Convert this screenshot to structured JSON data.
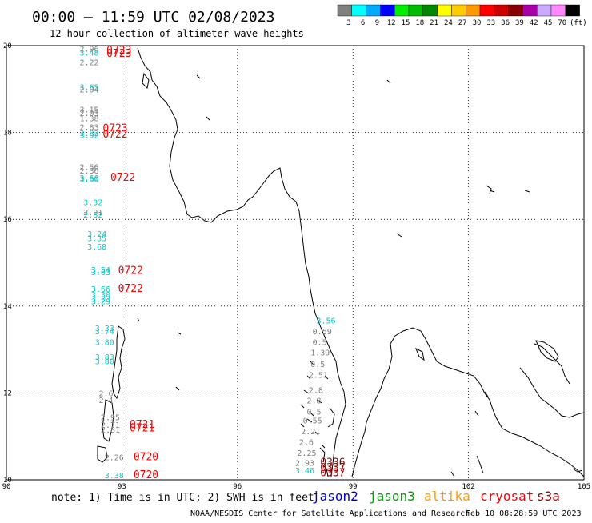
{
  "header": {
    "title": "00:00 – 11:59 UTC 02/08/2023",
    "subtitle": "12 hour collection of altimeter wave heights"
  },
  "legend": {
    "unit": "(ft)",
    "bins": [
      {
        "label": "3",
        "color": "#808080"
      },
      {
        "label": "6",
        "color": "#00ffff"
      },
      {
        "label": "9",
        "color": "#00aaff"
      },
      {
        "label": "12",
        "color": "#0000ff"
      },
      {
        "label": "15",
        "color": "#00ee00"
      },
      {
        "label": "18",
        "color": "#00bb00"
      },
      {
        "label": "21",
        "color": "#008800"
      },
      {
        "label": "24",
        "color": "#ffff00"
      },
      {
        "label": "27",
        "color": "#ffcc00"
      },
      {
        "label": "30",
        "color": "#ff9900"
      },
      {
        "label": "33",
        "color": "#ff0000"
      },
      {
        "label": "36",
        "color": "#cc0000"
      },
      {
        "label": "39",
        "color": "#880000"
      },
      {
        "label": "42",
        "color": "#aa00aa"
      },
      {
        "label": "45",
        "color": "#ccaaff"
      },
      {
        "label": "70",
        "color": "#ff88ff"
      },
      {
        "label": "",
        "color": "#000000"
      }
    ]
  },
  "axes": {
    "lon_labels": [
      "90",
      "93",
      "96",
      "99",
      "102",
      "105"
    ],
    "lat_labels": [
      "20",
      "18",
      "16",
      "14",
      "12",
      "10"
    ]
  },
  "colors": {
    "gray": "#808080",
    "cyan": "#00cccc",
    "red": "#ff0000",
    "darkred": "#990000",
    "coast": "#000000",
    "grid": "#000000"
  },
  "observations": [
    {
      "lon": 91.9,
      "lat": 19.86,
      "text": "2.96",
      "color": "gray"
    },
    {
      "lon": 91.9,
      "lat": 19.77,
      "text": "3.48",
      "color": "cyan"
    },
    {
      "lon": 92.6,
      "lat": 19.82,
      "text": "0723",
      "color": "red"
    },
    {
      "lon": 92.6,
      "lat": 19.74,
      "text": "0723",
      "color": "red"
    },
    {
      "lon": 91.9,
      "lat": 19.55,
      "text": "2.22",
      "color": "gray"
    },
    {
      "lon": 91.9,
      "lat": 18.98,
      "text": "3.65",
      "color": "cyan"
    },
    {
      "lon": 91.9,
      "lat": 18.92,
      "text": "2.04",
      "color": "gray"
    },
    {
      "lon": 91.9,
      "lat": 18.46,
      "text": "3.15",
      "color": "gray"
    },
    {
      "lon": 91.9,
      "lat": 18.38,
      "text": "2.03",
      "color": "gray"
    },
    {
      "lon": 91.9,
      "lat": 18.26,
      "text": "1.38",
      "color": "gray"
    },
    {
      "lon": 91.9,
      "lat": 18.06,
      "text": "2.83",
      "color": "gray"
    },
    {
      "lon": 91.9,
      "lat": 17.92,
      "text": "3.82",
      "color": "cyan"
    },
    {
      "lon": 91.9,
      "lat": 17.87,
      "text": "3.92",
      "color": "cyan"
    },
    {
      "lon": 92.5,
      "lat": 18.02,
      "text": "0723",
      "color": "red"
    },
    {
      "lon": 92.5,
      "lat": 17.88,
      "text": "0722",
      "color": "red"
    },
    {
      "lon": 91.9,
      "lat": 17.14,
      "text": "2.56",
      "color": "gray"
    },
    {
      "lon": 91.9,
      "lat": 17.05,
      "text": "2.36",
      "color": "gray"
    },
    {
      "lon": 91.9,
      "lat": 16.89,
      "text": "3.66",
      "color": "cyan"
    },
    {
      "lon": 91.9,
      "lat": 16.86,
      "text": "3.60",
      "color": "cyan"
    },
    {
      "lon": 92.7,
      "lat": 16.89,
      "text": "0722",
      "color": "red"
    },
    {
      "lon": 92.0,
      "lat": 16.33,
      "text": "3.32",
      "color": "cyan"
    },
    {
      "lon": 92.0,
      "lat": 16.1,
      "text": "2.91",
      "color": "gray"
    },
    {
      "lon": 92.0,
      "lat": 16.04,
      "text": "2.82",
      "color": "cyan"
    },
    {
      "lon": 92.1,
      "lat": 15.6,
      "text": "3.24",
      "color": "cyan"
    },
    {
      "lon": 92.1,
      "lat": 15.5,
      "text": "3.35",
      "color": "cyan"
    },
    {
      "lon": 92.1,
      "lat": 15.3,
      "text": "3.68",
      "color": "cyan"
    },
    {
      "lon": 92.2,
      "lat": 14.77,
      "text": "3.54",
      "color": "cyan"
    },
    {
      "lon": 92.2,
      "lat": 14.71,
      "text": "3.63",
      "color": "cyan"
    },
    {
      "lon": 92.9,
      "lat": 14.74,
      "text": "0722",
      "color": "red"
    },
    {
      "lon": 92.2,
      "lat": 14.33,
      "text": "3.66",
      "color": "cyan"
    },
    {
      "lon": 92.2,
      "lat": 14.2,
      "text": "3.30",
      "color": "cyan"
    },
    {
      "lon": 92.2,
      "lat": 14.1,
      "text": "3.33",
      "color": "cyan"
    },
    {
      "lon": 92.2,
      "lat": 14.04,
      "text": "3.29",
      "color": "cyan"
    },
    {
      "lon": 92.9,
      "lat": 14.33,
      "text": "0722",
      "color": "red"
    },
    {
      "lon": 92.3,
      "lat": 13.43,
      "text": "3.33",
      "color": "cyan"
    },
    {
      "lon": 92.3,
      "lat": 13.35,
      "text": "3.74",
      "color": "cyan"
    },
    {
      "lon": 92.3,
      "lat": 13.1,
      "text": "3.80",
      "color": "cyan"
    },
    {
      "lon": 92.3,
      "lat": 12.76,
      "text": "3.83",
      "color": "cyan"
    },
    {
      "lon": 92.3,
      "lat": 12.66,
      "text": "3.80",
      "color": "cyan"
    },
    {
      "lon": 92.4,
      "lat": 11.92,
      "text": "2.6",
      "color": "gray"
    },
    {
      "lon": 92.4,
      "lat": 11.77,
      "text": "2.4",
      "color": "gray"
    },
    {
      "lon": 92.45,
      "lat": 11.37,
      "text": "2.95",
      "color": "gray"
    },
    {
      "lon": 92.45,
      "lat": 11.2,
      "text": "2.71",
      "color": "gray"
    },
    {
      "lon": 92.45,
      "lat": 11.09,
      "text": "2.81",
      "color": "gray"
    },
    {
      "lon": 93.2,
      "lat": 11.2,
      "text": "0721",
      "color": "red"
    },
    {
      "lon": 93.2,
      "lat": 11.11,
      "text": "0721",
      "color": "red"
    },
    {
      "lon": 92.55,
      "lat": 10.45,
      "text": "2.26",
      "color": "gray"
    },
    {
      "lon": 93.3,
      "lat": 10.45,
      "text": "0720",
      "color": "red"
    },
    {
      "lon": 92.55,
      "lat": 10.04,
      "text": "3.38",
      "color": "cyan"
    },
    {
      "lon": 93.3,
      "lat": 10.04,
      "text": "0720",
      "color": "red"
    },
    {
      "lon": 98.05,
      "lat": 13.6,
      "text": "3.56",
      "color": "cyan"
    },
    {
      "lon": 97.95,
      "lat": 13.35,
      "text": "0.59",
      "color": "gray"
    },
    {
      "lon": 97.95,
      "lat": 13.1,
      "text": "0.5",
      "color": "gray"
    },
    {
      "lon": 97.9,
      "lat": 12.86,
      "text": "1.39",
      "color": "gray"
    },
    {
      "lon": 97.9,
      "lat": 12.6,
      "text": "0.5",
      "color": "gray"
    },
    {
      "lon": 97.85,
      "lat": 12.35,
      "text": "2.51",
      "color": "gray"
    },
    {
      "lon": 97.85,
      "lat": 12.0,
      "text": "2.8",
      "color": "gray"
    },
    {
      "lon": 97.8,
      "lat": 11.76,
      "text": "2.8",
      "color": "gray"
    },
    {
      "lon": 97.8,
      "lat": 11.5,
      "text": "0.5",
      "color": "gray"
    },
    {
      "lon": 97.7,
      "lat": 11.3,
      "text": "0.55",
      "color": "gray"
    },
    {
      "lon": 97.65,
      "lat": 11.05,
      "text": "2.21",
      "color": "gray"
    },
    {
      "lon": 97.6,
      "lat": 10.8,
      "text": "2.6",
      "color": "gray"
    },
    {
      "lon": 97.55,
      "lat": 10.55,
      "text": "2.25",
      "color": "gray"
    },
    {
      "lon": 97.5,
      "lat": 10.32,
      "text": "2.93",
      "color": "gray"
    },
    {
      "lon": 97.5,
      "lat": 10.15,
      "text": "3.46",
      "color": "cyan"
    },
    {
      "lon": 98.15,
      "lat": 10.32,
      "text": "0336",
      "color": "darkred"
    },
    {
      "lon": 98.15,
      "lat": 10.2,
      "text": "0337",
      "color": "darkred"
    },
    {
      "lon": 98.15,
      "lat": 10.08,
      "text": "0337",
      "color": "darkred"
    }
  ],
  "footer": {
    "note": "note: 1) Time is in UTC; 2) SWH is in feet",
    "satellites": [
      {
        "name": "jason2",
        "color": "#0000cc"
      },
      {
        "name": "jason3",
        "color": "#009900"
      },
      {
        "name": "altika",
        "color": "#ff9900"
      },
      {
        "name": "cryosat",
        "color": "#ff0000"
      },
      {
        "name": "s3a",
        "color": "#990000"
      }
    ],
    "credit": "NOAA/NESDIS Center for Satellite Applications and Research",
    "timestamp": "Feb 10 08:28:59 UTC 2023"
  }
}
